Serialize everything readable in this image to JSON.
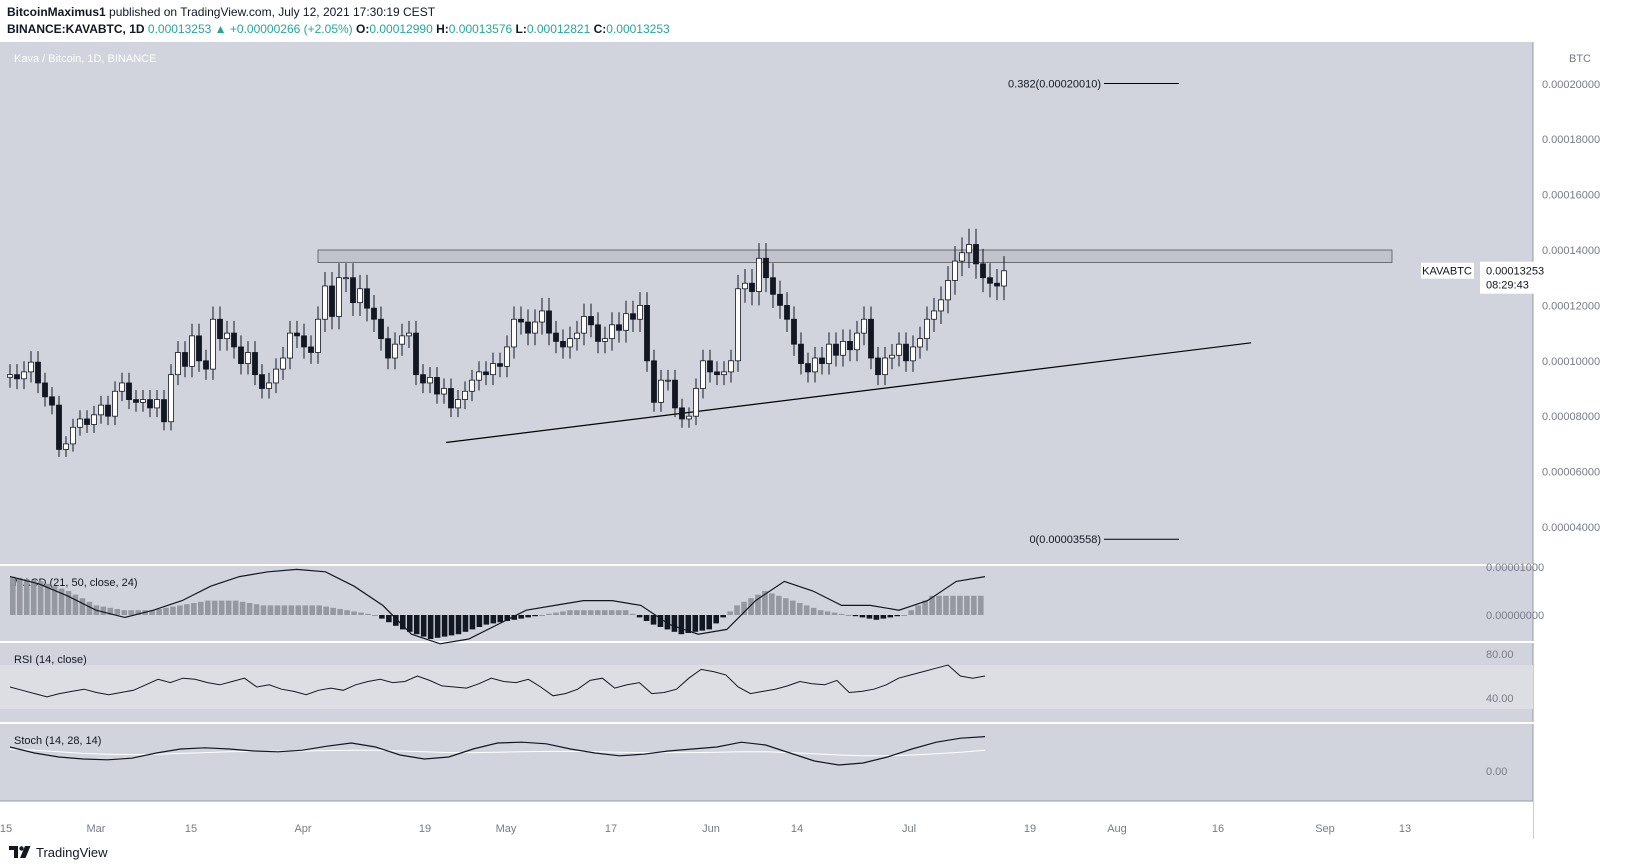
{
  "header": {
    "author": "BitcoinMaximus1",
    "published": " published on TradingView.com, July 12, 2021 17:30:19 CEST",
    "symbol_line": "BINANCE:KAVABTC, 1D",
    "last": "0.00013253",
    "change_arrow": "▲",
    "change": "+0.00000266 (+2.05%)",
    "o_label": "O:",
    "o": "0.00012990",
    "h_label": "H:",
    "h": "0.00013576",
    "l_label": "L:",
    "l": "0.00012821",
    "c_label": "C:",
    "c": "0.00013253"
  },
  "footer": {
    "brand": "TradingView",
    "icon": "tradingview-logo-icon"
  },
  "colors": {
    "chart_bg": "#d1d4dc",
    "axis_bg": "#ffffff",
    "up": "#ffffff",
    "down": "#131722",
    "line": "#000000",
    "zone": "#b2b5be",
    "rsi_band": "#dcdee3"
  },
  "chart_data": {
    "type": "candlestick",
    "title": "Kava / Bitcoin, 1D, BINANCE",
    "currency": "BTC",
    "ylim": [
      2e-05,
      0.00021
    ],
    "y_ticks": [
      "0.00020000",
      "0.00018000",
      "0.00016000",
      "0.00014000",
      "0.00012000",
      "0.00010000",
      "0.00008000",
      "0.00006000",
      "0.00004000"
    ],
    "x_ticks": [
      "15",
      "Mar",
      "15",
      "Apr",
      "19",
      "May",
      "17",
      "Jun",
      "14",
      "Jul",
      "19",
      "Aug",
      "16",
      "Sep",
      "13"
    ],
    "price_label": {
      "symbol": "KAVABTC",
      "value": "0.00013253",
      "countdown": "08:29:43"
    },
    "fib_levels": [
      {
        "label": "0.382(0.00020010)",
        "value": 0.0002001
      },
      {
        "label": "0(0.00003558)",
        "value": 3.558e-05
      }
    ],
    "resistance_zone": [
      0.0001355,
      0.00014
    ],
    "support_line": {
      "from": [
        "Apr 22",
        7.05e-05
      ],
      "to": [
        "Aug 22",
        0.0001065
      ]
    },
    "closes": [
      9.5e-05,
      9.35e-05,
      9.6e-05,
      9.95e-05,
      9.2e-05,
      8.7e-05,
      8.4e-05,
      6.8e-05,
      7e-05,
      7.6e-05,
      7.9e-05,
      7.7e-05,
      8.05e-05,
      8.4e-05,
      8e-05,
      8.9e-05,
      9.2e-05,
      8.6e-05,
      8.5e-05,
      8.6e-05,
      8.3e-05,
      8.6e-05,
      7.8e-05,
      9.5e-05,
      0.000103,
      9.8e-05,
      0.000109,
      0.0001,
      9.7e-05,
      0.000115,
      0.000108,
      0.00011,
      0.000105,
      9.9e-05,
      0.000103,
      9.5e-05,
      9e-05,
      9.2e-05,
      9.7e-05,
      0.000101,
      0.00011,
      0.000109,
      0.000105,
      0.000103,
      0.000115,
      0.000127,
      0.000116,
      0.00013,
      0.00013,
      0.000121,
      0.000126,
      0.000119,
      0.000115,
      0.000108,
      0.000101,
      0.000106,
      0.000109,
      0.00011,
      9.5e-05,
      9.2e-05,
      9.4e-05,
      8.8e-05,
      9e-05,
      8.3e-05,
      8.6e-05,
      8.9e-05,
      9.3e-05,
      9.6e-05,
      9.5e-05,
      9.9e-05,
      9.8e-05,
      0.000105,
      0.000115,
      0.000114,
      0.00011,
      0.000114,
      0.000118,
      0.00011,
      0.000107,
      0.000105,
      0.000108,
      0.00011,
      0.000116,
      0.000113,
      0.000107,
      0.000108,
      0.000113,
      0.000111,
      0.000117,
      0.000115,
      0.00012,
      0.0001,
      8.5e-05,
      9.3e-05,
      9.3e-05,
      8.3e-05,
      7.9e-05,
      8e-05,
      9e-05,
      0.0001,
      9.6e-05,
      9.5e-05,
      9.6e-05,
      0.0001,
      0.000126,
      0.000128,
      0.000125,
      0.000137,
      0.00013,
      0.000124,
      0.00012,
      0.000115,
      0.000106,
      9.9e-05,
      9.6e-05,
      0.000101,
      9.9e-05,
      0.000106,
      0.000102,
      0.000107,
      0.000104,
      0.00011,
      0.000115,
      0.000101,
      9.5e-05,
      0.000101,
      0.000102,
      0.000106,
      0.0001,
      0.000105,
      0.000108,
      0.000115,
      0.000118,
      0.000122,
      0.000129,
      0.000136,
      0.000139,
      0.000142,
      0.000135,
      0.00013,
      0.000128,
      0.000127,
      0.0001325
    ],
    "macd": {
      "label": "MACD (21, 50, close, 24)",
      "y_ticks": [
        "0.00001000",
        "0.00000000"
      ],
      "line": [
        8e-06,
        6.5e-06,
        4e-06,
        1e-06,
        -5e-07,
        1e-06,
        3e-06,
        6e-06,
        8e-06,
        9e-06,
        9.5e-06,
        9e-06,
        6e-06,
        2e-06,
        -4e-06,
        -6e-06,
        -5e-06,
        -2e-06,
        1e-06,
        2e-06,
        3e-06,
        3e-06,
        2e-06,
        -2e-06,
        -4e-06,
        -3e-06,
        3e-06,
        7e-06,
        5e-06,
        2e-06,
        2e-06,
        1e-06,
        3e-06,
        7e-06,
        8e-06
      ],
      "hist": [
        8e-06,
        7e-06,
        5e-06,
        2e-06,
        1e-06,
        1e-06,
        2e-06,
        3e-06,
        3e-06,
        2e-06,
        2e-06,
        2e-06,
        1e-06,
        0.0,
        -3e-06,
        -5e-06,
        -4e-06,
        -2e-06,
        -1e-06,
        0.0,
        1e-06,
        1e-06,
        1e-06,
        -2e-06,
        -4e-06,
        -3e-06,
        2e-06,
        5e-06,
        3e-06,
        1e-06,
        0.0,
        -1e-06,
        0.0,
        4e-06,
        4e-06
      ]
    },
    "rsi": {
      "label": "RSI (14, close)",
      "y_ticks": [
        "80.00",
        "40.00"
      ],
      "values": [
        50,
        47,
        44,
        41,
        44,
        46,
        48,
        45,
        43,
        45,
        47,
        52,
        57,
        54,
        58,
        57,
        54,
        52,
        55,
        58,
        50,
        52,
        48,
        46,
        43,
        47,
        49,
        47,
        52,
        55,
        57,
        54,
        55,
        60,
        56,
        51,
        50,
        49,
        53,
        58,
        55,
        54,
        57,
        50,
        42,
        44,
        48,
        56,
        58,
        49,
        52,
        54,
        44,
        45,
        48,
        58,
        66,
        64,
        61,
        50,
        44,
        46,
        48,
        51,
        55,
        53,
        52,
        56,
        45,
        46,
        48,
        52,
        58,
        61,
        64,
        67,
        70,
        60,
        58,
        60
      ]
    },
    "stoch": {
      "label": "Stoch (14, 28, 14)",
      "y_ticks": [
        "0.00"
      ],
      "k": [
        0.6,
        0.45,
        0.35,
        0.3,
        0.28,
        0.32,
        0.45,
        0.55,
        0.58,
        0.55,
        0.5,
        0.48,
        0.52,
        0.62,
        0.7,
        0.6,
        0.4,
        0.3,
        0.35,
        0.55,
        0.7,
        0.72,
        0.68,
        0.55,
        0.45,
        0.38,
        0.42,
        0.5,
        0.55,
        0.6,
        0.72,
        0.65,
        0.45,
        0.25,
        0.15,
        0.2,
        0.35,
        0.55,
        0.72,
        0.82,
        0.86
      ],
      "d": [
        0.55,
        0.52,
        0.48,
        0.44,
        0.42,
        0.41,
        0.42,
        0.44,
        0.46,
        0.48,
        0.49,
        0.5,
        0.5,
        0.51,
        0.52,
        0.52,
        0.5,
        0.48,
        0.46,
        0.46,
        0.47,
        0.48,
        0.49,
        0.49,
        0.48,
        0.47,
        0.46,
        0.46,
        0.46,
        0.47,
        0.48,
        0.48,
        0.46,
        0.43,
        0.4,
        0.38,
        0.38,
        0.4,
        0.43,
        0.47,
        0.52
      ]
    }
  }
}
